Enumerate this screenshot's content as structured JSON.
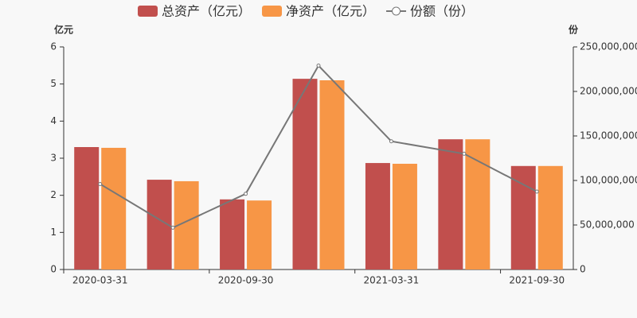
{
  "chart_data": {
    "type": "bar",
    "categories": [
      "2020-03-31",
      null,
      "2020-09-30",
      null,
      "2021-03-31",
      null,
      "2021-09-30"
    ],
    "series": [
      {
        "name": "总资产（亿元）",
        "color": "#c14f4d",
        "values": [
          3.3,
          2.42,
          1.89,
          5.14,
          2.87,
          3.51,
          2.79
        ]
      },
      {
        "name": "净资产（亿元）",
        "color": "#f79646",
        "values": [
          3.28,
          2.38,
          1.86,
          5.1,
          2.85,
          3.51,
          2.79
        ]
      },
      {
        "name": "份额（份）",
        "color": "#777777",
        "type": "line",
        "axis": "y2",
        "values": [
          96000000,
          47000000,
          85000000,
          229000000,
          144000000,
          130000000,
          87500000
        ]
      }
    ],
    "y_label": "亿元",
    "y2_label": "份",
    "ylim": [
      0,
      6
    ],
    "yticks": [
      0,
      1,
      2,
      3,
      4,
      5,
      6
    ],
    "y2lim": [
      0,
      250000000
    ],
    "y2ticks": [
      0,
      {
        "value": 50000000,
        "label": "50,000,000"
      },
      {
        "value": 100000000,
        "label": "100,000,000"
      },
      {
        "value": 150000000,
        "label": "150,000,000"
      },
      {
        "value": 200000000,
        "label": "200,000,000"
      },
      {
        "value": 250000000,
        "label": "250,000,000"
      }
    ],
    "grid": false,
    "legend": "top"
  }
}
